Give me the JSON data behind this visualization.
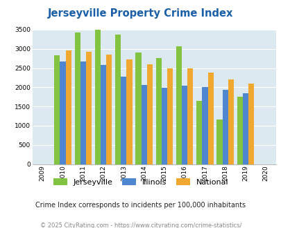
{
  "title": "Jerseyville Property Crime Index",
  "years": [
    2009,
    2010,
    2011,
    2012,
    2013,
    2014,
    2015,
    2016,
    2017,
    2018,
    2019,
    2020
  ],
  "jerseyville": [
    null,
    2830,
    3420,
    3490,
    3370,
    2910,
    2760,
    3060,
    1640,
    1170,
    1760,
    null
  ],
  "illinois": [
    null,
    2670,
    2670,
    2590,
    2280,
    2060,
    1990,
    2050,
    2010,
    1940,
    1840,
    null
  ],
  "national": [
    null,
    2960,
    2920,
    2860,
    2720,
    2600,
    2500,
    2490,
    2380,
    2200,
    2100,
    null
  ],
  "bar_colors": {
    "jerseyville": "#82c341",
    "illinois": "#4f86d0",
    "national": "#f0a830"
  },
  "ylim": [
    0,
    3500
  ],
  "yticks": [
    0,
    500,
    1000,
    1500,
    2000,
    2500,
    3000,
    3500
  ],
  "background_color": "#dce9f0",
  "title_color": "#1a5fa8",
  "subtitle": "Crime Index corresponds to incidents per 100,000 inhabitants",
  "footer": "© 2025 CityRating.com - https://www.cityrating.com/crime-statistics/",
  "legend_labels": [
    "Jerseyville",
    "Illinois",
    "National"
  ]
}
